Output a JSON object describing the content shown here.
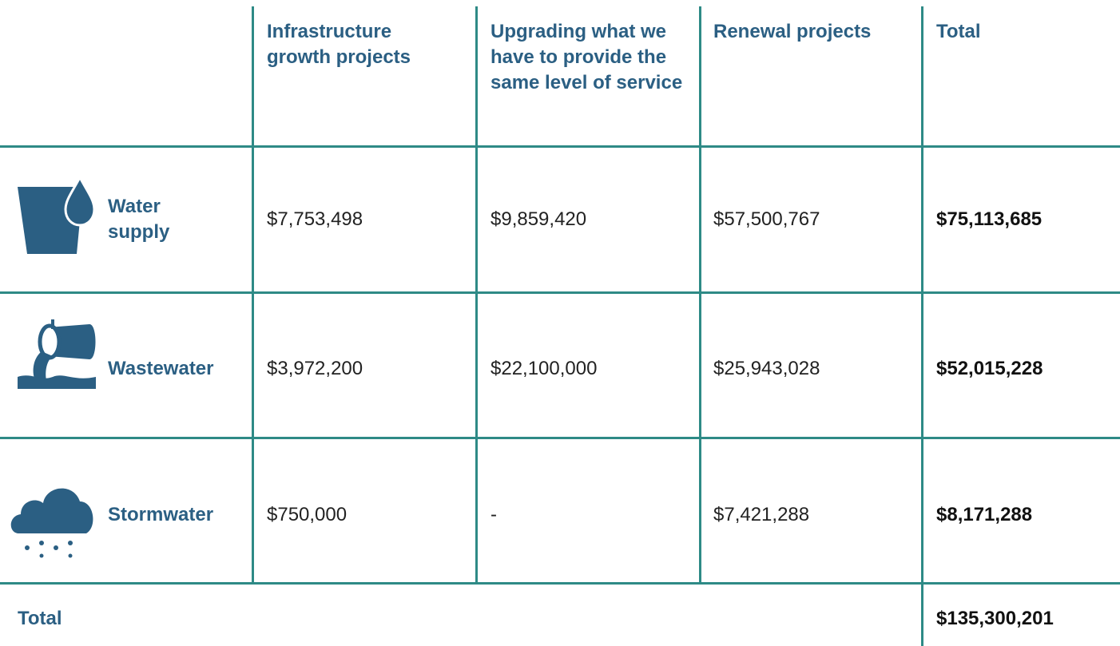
{
  "table": {
    "header": [
      "Infrastructure growth projects",
      "Upgrading what we have to provide the same level of service",
      "Renewal projects",
      "Total"
    ],
    "rows": [
      [
        "Water supply",
        "$7,753,498",
        "$9,859,420",
        "$57,500,767",
        "$75,113,685"
      ],
      [
        "Wastewater",
        "$3,972,200",
        "$22,100,000",
        "$25,943,028",
        "$52,015,228"
      ],
      [
        "Stormwater",
        "$750,000",
        "-",
        "$7,421,288",
        "$8,171,288"
      ]
    ],
    "footer": {
      "label": "Total",
      "value": "$135,300,201"
    }
  }
}
